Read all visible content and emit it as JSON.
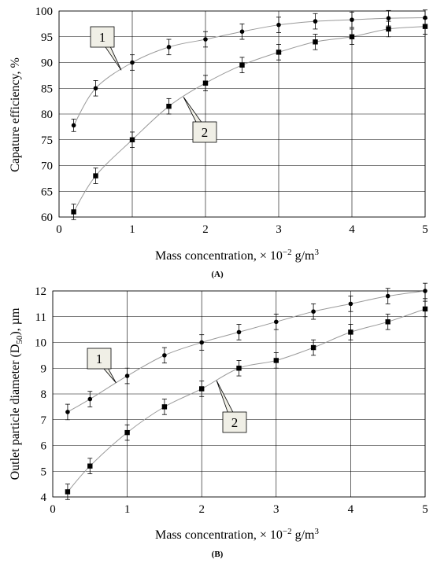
{
  "chart_data": [
    {
      "type": "scatter",
      "panel_label": "(A)",
      "xlabel": "Mass concentration, × 10",
      "xlabel_exp": "−2",
      "xlabel_unit": " g/m",
      "xlabel_unit_exp": "3",
      "ylabel": "Capature efficiency, %",
      "xlim": [
        0,
        5
      ],
      "ylim": [
        60,
        100
      ],
      "xticks": [
        0,
        1,
        2,
        3,
        4,
        5
      ],
      "yticks": [
        60,
        65,
        70,
        75,
        80,
        85,
        90,
        95,
        100
      ],
      "grid": true,
      "series": [
        {
          "name": "1",
          "marker": "circle",
          "x": [
            0.2,
            0.5,
            1.0,
            1.5,
            2.0,
            2.5,
            3.0,
            3.5,
            4.0,
            4.5,
            5.0
          ],
          "y": [
            77.8,
            85.0,
            90.0,
            93.0,
            94.5,
            96.0,
            97.3,
            98.0,
            98.3,
            98.6,
            98.7
          ],
          "err": [
            1.2,
            1.5,
            1.5,
            1.5,
            1.5,
            1.5,
            1.5,
            1.5,
            1.5,
            1.5,
            1.5
          ]
        },
        {
          "name": "2",
          "marker": "square",
          "x": [
            0.2,
            0.5,
            1.0,
            1.5,
            2.0,
            2.5,
            3.0,
            3.5,
            4.0,
            4.5,
            5.0
          ],
          "y": [
            61.0,
            68.0,
            75.0,
            81.5,
            86.0,
            89.5,
            92.0,
            94.0,
            95.0,
            96.5,
            97.0
          ],
          "err": [
            1.5,
            1.5,
            1.5,
            1.5,
            1.5,
            1.5,
            1.5,
            1.5,
            1.5,
            1.5,
            1.5
          ]
        }
      ],
      "callouts": [
        {
          "text": "1",
          "series": "1",
          "target_x": 0.85
        },
        {
          "text": "2",
          "series": "2",
          "target_x": 1.7
        }
      ]
    },
    {
      "type": "scatter",
      "panel_label": "(B)",
      "xlabel": "Mass concentration, × 10",
      "xlabel_exp": "−2",
      "xlabel_unit": " g/m",
      "xlabel_unit_exp": "3",
      "ylabel": "Outlet particle diameter (D",
      "ylabel_sub": "50",
      "ylabel_end": "), µm",
      "xlim": [
        0,
        5
      ],
      "ylim": [
        4,
        12
      ],
      "xticks": [
        0,
        1,
        2,
        3,
        4,
        5
      ],
      "yticks": [
        4,
        5,
        6,
        7,
        8,
        9,
        10,
        11,
        12
      ],
      "grid": true,
      "series": [
        {
          "name": "1",
          "marker": "circle",
          "x": [
            0.2,
            0.5,
            1.0,
            1.5,
            2.0,
            2.5,
            3.0,
            3.5,
            4.0,
            4.5,
            5.0
          ],
          "y": [
            7.3,
            7.8,
            8.7,
            9.5,
            10.0,
            10.4,
            10.8,
            11.2,
            11.5,
            11.8,
            12.0
          ],
          "err": [
            0.3,
            0.3,
            0.3,
            0.3,
            0.3,
            0.3,
            0.3,
            0.3,
            0.3,
            0.3,
            0.3
          ]
        },
        {
          "name": "2",
          "marker": "square",
          "x": [
            0.2,
            0.5,
            1.0,
            1.5,
            2.0,
            2.5,
            3.0,
            3.5,
            4.0,
            4.5,
            5.0
          ],
          "y": [
            4.2,
            5.2,
            6.5,
            7.5,
            8.2,
            9.0,
            9.3,
            9.8,
            10.4,
            10.8,
            11.3
          ],
          "err": [
            0.3,
            0.3,
            0.3,
            0.3,
            0.3,
            0.3,
            0.3,
            0.3,
            0.3,
            0.3,
            0.3
          ]
        }
      ],
      "callouts": [
        {
          "text": "1",
          "series": "1",
          "target_x": 0.85
        },
        {
          "text": "2",
          "series": "2",
          "target_x": 2.2
        }
      ]
    }
  ],
  "colors": {
    "marker": "#000000",
    "trend": "#999999",
    "grid": "#000000",
    "callout_fill": "#f0efe6"
  }
}
